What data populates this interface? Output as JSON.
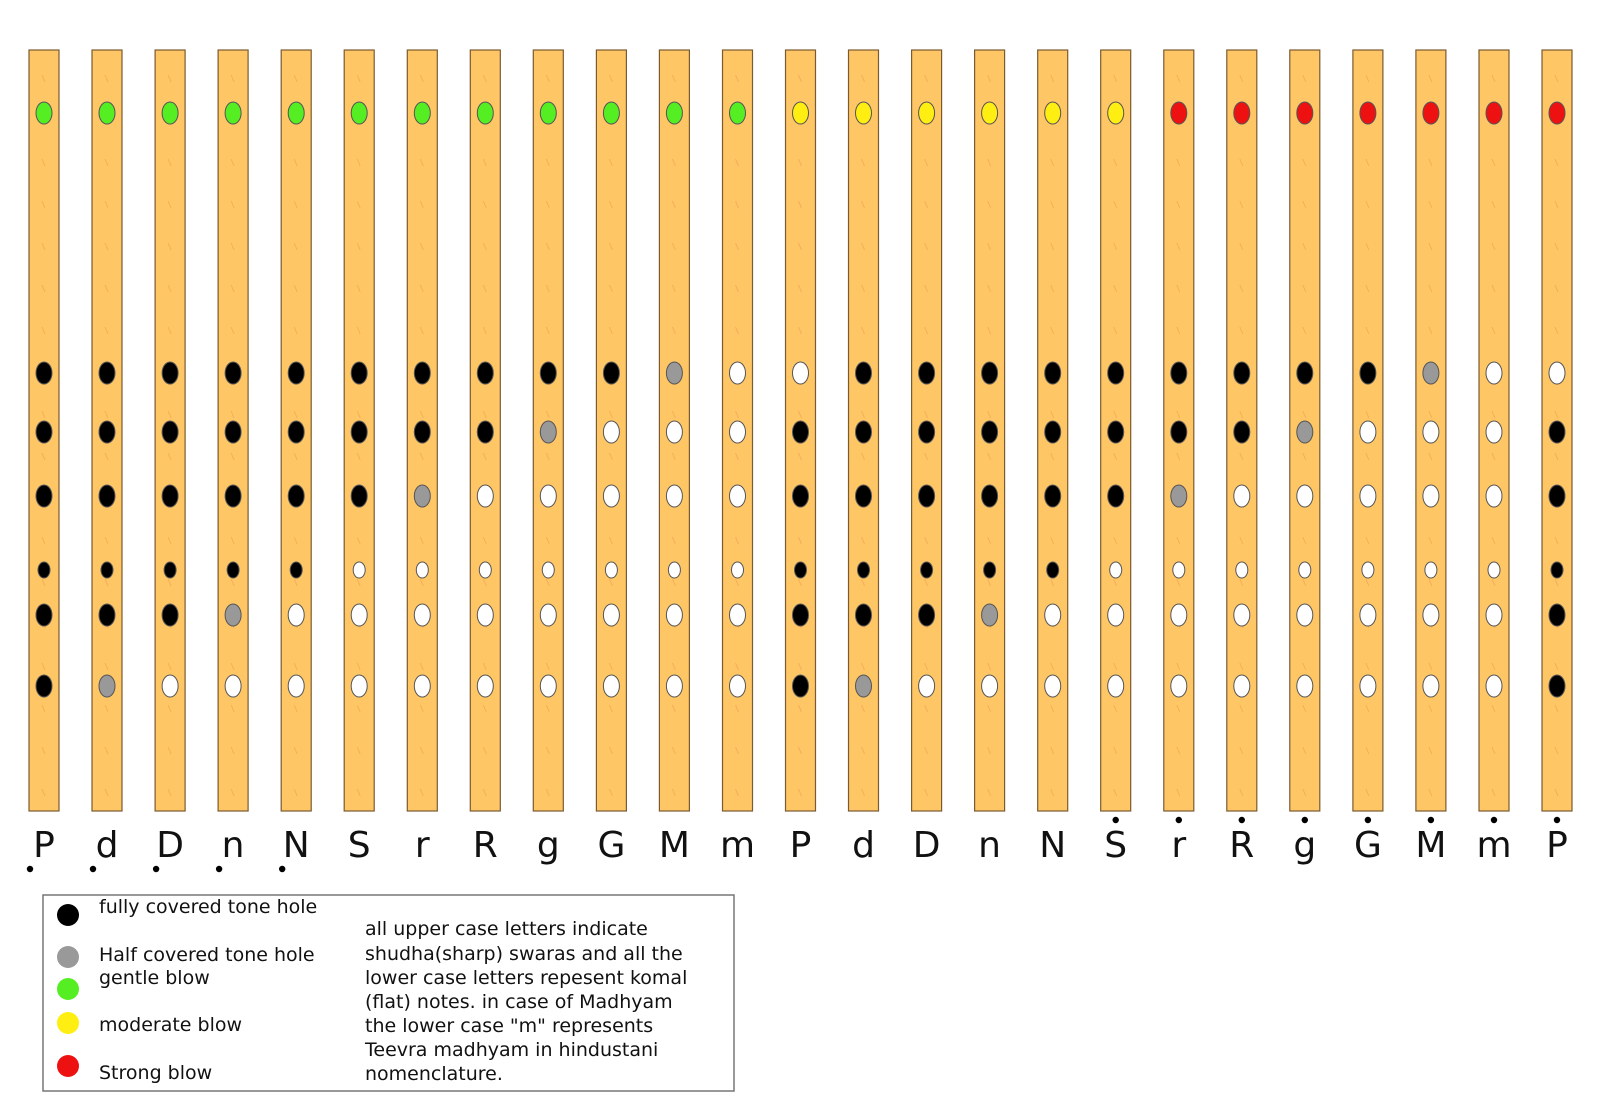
{
  "colors": {
    "flute_body": "#ffc666",
    "flute_edge": "#7a5a30",
    "flute_grain": "#f0a050",
    "covered": "#000000",
    "half": "#999999",
    "open": "#ffffff",
    "gentle": "#55ee22",
    "moderate": "#ffee11",
    "strong": "#ee1111"
  },
  "chart_data": {
    "type": "fingering-chart",
    "hole_states": {
      "C": "fully covered",
      "H": "half covered",
      "O": "open"
    },
    "blow_levels": {
      "G": "gentle",
      "M": "moderate",
      "S": "strong"
    },
    "notes": [
      {
        "label": "P",
        "octave": "lower",
        "blow": "G",
        "holes": "CCCCCC"
      },
      {
        "label": "d",
        "octave": "lower",
        "blow": "G",
        "holes": "CCCCCH"
      },
      {
        "label": "D",
        "octave": "lower",
        "blow": "G",
        "holes": "CCCCCO"
      },
      {
        "label": "n",
        "octave": "lower",
        "blow": "G",
        "holes": "CCCCHO"
      },
      {
        "label": "N",
        "octave": "lower",
        "blow": "G",
        "holes": "CCCCOO"
      },
      {
        "label": "S",
        "octave": "middle",
        "blow": "G",
        "holes": "CCCOOO"
      },
      {
        "label": "r",
        "octave": "middle",
        "blow": "G",
        "holes": "CCHOOO"
      },
      {
        "label": "R",
        "octave": "middle",
        "blow": "G",
        "holes": "CCOOOO"
      },
      {
        "label": "g",
        "octave": "middle",
        "blow": "G",
        "holes": "CHOOOO"
      },
      {
        "label": "G",
        "octave": "middle",
        "blow": "G",
        "holes": "COOOOO"
      },
      {
        "label": "M",
        "octave": "middle",
        "blow": "G",
        "holes": "HOOOOO"
      },
      {
        "label": "m",
        "octave": "middle",
        "blow": "G",
        "holes": "OOOOOO"
      },
      {
        "label": "P",
        "octave": "middle",
        "blow": "M",
        "holes": "OCCCCC"
      },
      {
        "label": "d",
        "octave": "middle",
        "blow": "M",
        "holes": "CCCCCH"
      },
      {
        "label": "D",
        "octave": "middle",
        "blow": "M",
        "holes": "CCCCCO"
      },
      {
        "label": "n",
        "octave": "middle",
        "blow": "M",
        "holes": "CCCCHO"
      },
      {
        "label": "N",
        "octave": "middle",
        "blow": "M",
        "holes": "CCCCOO"
      },
      {
        "label": "S",
        "octave": "upper",
        "blow": "M",
        "holes": "CCCOOO"
      },
      {
        "label": "r",
        "octave": "upper",
        "blow": "S",
        "holes": "CCHOOO"
      },
      {
        "label": "R",
        "octave": "upper",
        "blow": "S",
        "holes": "CCOOOO"
      },
      {
        "label": "g",
        "octave": "upper",
        "blow": "S",
        "holes": "CHOOOO"
      },
      {
        "label": "G",
        "octave": "upper",
        "blow": "S",
        "holes": "COOOOO"
      },
      {
        "label": "M",
        "octave": "upper",
        "blow": "S",
        "holes": "HOOOOO"
      },
      {
        "label": "m",
        "octave": "upper",
        "blow": "S",
        "holes": "OOOOOO"
      },
      {
        "label": "P",
        "octave": "upper",
        "blow": "S",
        "holes": "OCCCCC"
      }
    ]
  },
  "legend": {
    "covered": "fully covered tone hole",
    "half": "Half covered tone hole",
    "gentle": "gentle blow",
    "moderate": "moderate blow",
    "strong": "Strong blow"
  },
  "note_text": [
    "all upper case letters indicate",
    "shudha(sharp) swaras and all the",
    "lower case letters repesent komal",
    "(flat) notes. in case of Madhyam",
    "the lower case \"m\" represents",
    "Teevra madhyam in hindustani",
    "nomenclature."
  ]
}
